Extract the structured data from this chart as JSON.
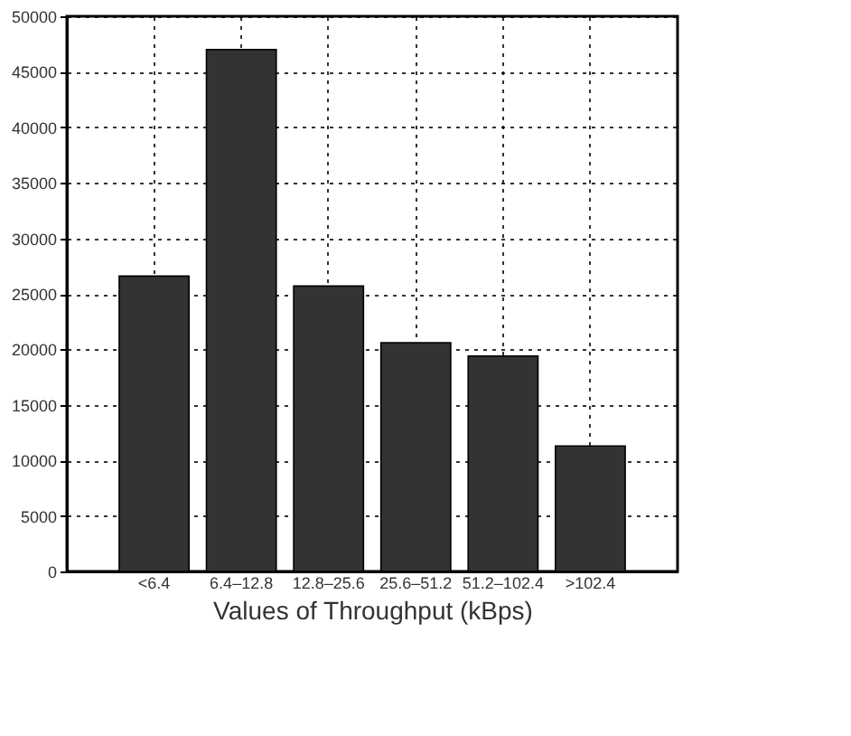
{
  "chart_data": {
    "type": "bar",
    "xlabel": "Values of Throughput (kBps)",
    "categories": [
      "<6.4",
      "6.4–12.8",
      "12.8–25.6",
      "25.6–51.2",
      "51.2–102.4",
      ">102.4"
    ],
    "values": [
      26600,
      47000,
      25700,
      20600,
      19400,
      11300
    ],
    "color": "#333333",
    "ylim": [
      0,
      50000
    ],
    "yticks": [
      0,
      5000,
      10000,
      15000,
      20000,
      25000,
      30000,
      35000,
      40000,
      45000,
      50000
    ],
    "grid": true
  }
}
